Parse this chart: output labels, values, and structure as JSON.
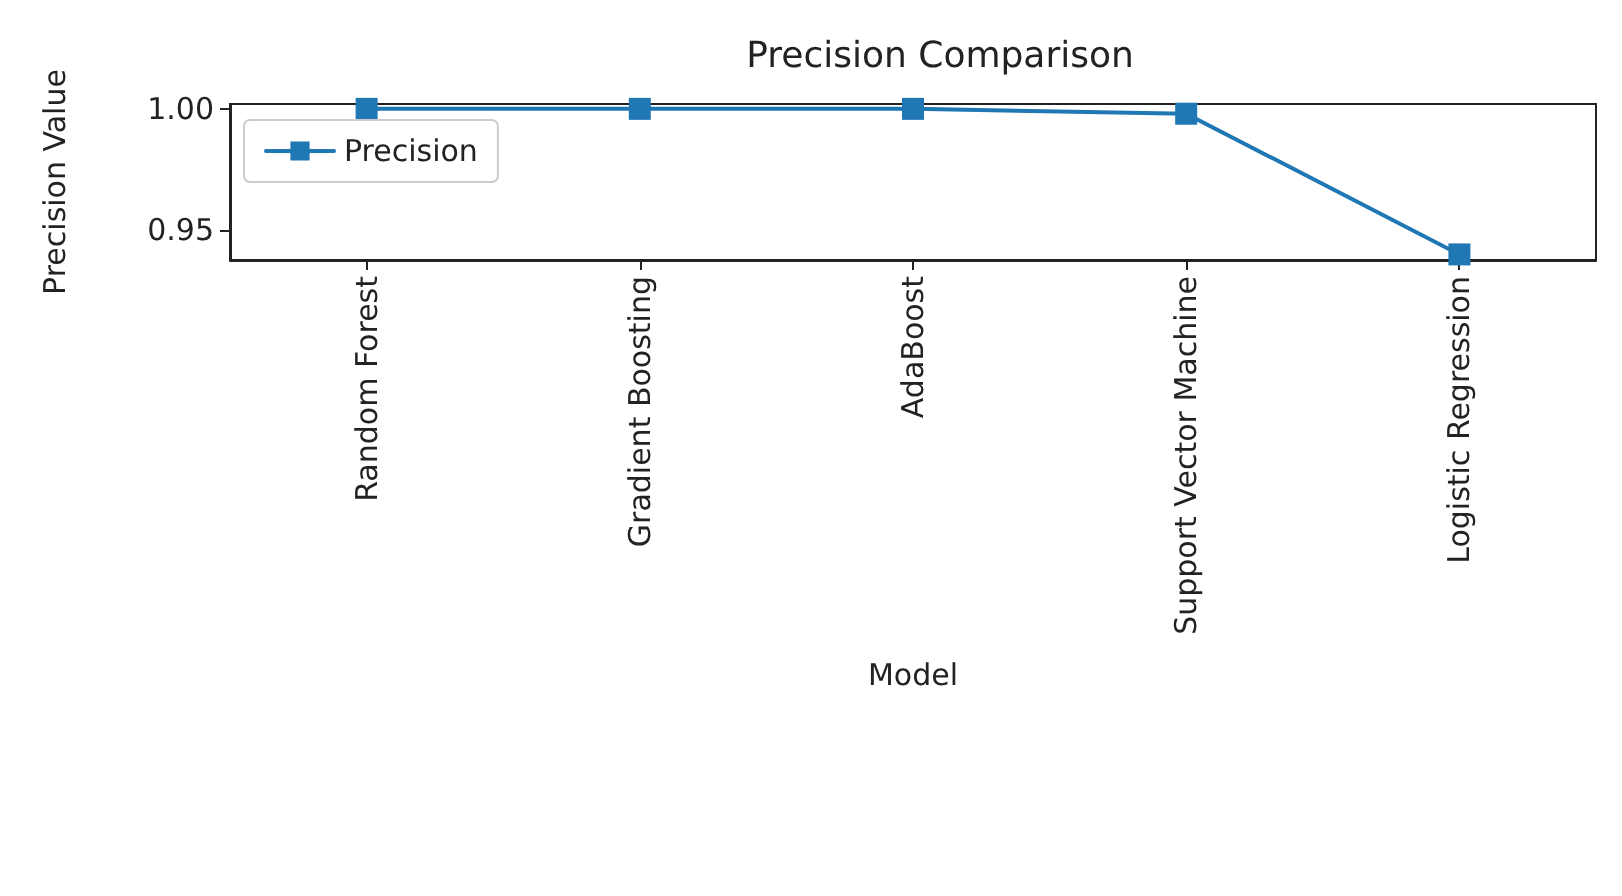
{
  "chart_data": {
    "type": "line",
    "title": "Precision Comparison",
    "xlabel": "Model",
    "ylabel": "Precision Value",
    "categories": [
      "Random Forest",
      "Gradient Boosting",
      "AdaBoost",
      "Support Vector Machine",
      "Logistic Regression"
    ],
    "series": [
      {
        "name": "Precision",
        "color": "#1f77b4",
        "values": [
          1.0,
          1.0,
          1.0,
          0.998,
          0.94
        ]
      }
    ],
    "ylim": [
      0.9377,
      1.002
    ],
    "yticks": [
      0.95,
      {
        "value": 1.0,
        "label": "1.00"
      }
    ],
    "legend": "top left",
    "marker": "square",
    "line_style": "solid",
    "grid": false
  }
}
